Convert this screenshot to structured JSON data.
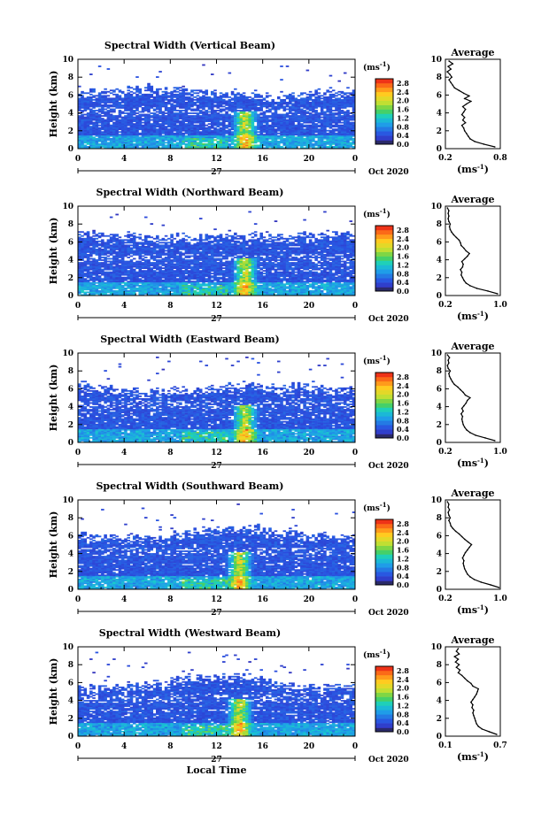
{
  "chart_data": [
    {
      "type": "heatmap",
      "title": "Spectral Width (Vertical Beam)",
      "ylabel": "Height (km)",
      "x_ticks": [
        "0",
        "4",
        "8",
        "12",
        "16",
        "20",
        "0"
      ],
      "xlim": [
        0,
        24
      ],
      "y_ticks": [
        "0",
        "2",
        "4",
        "6",
        "8",
        "10"
      ],
      "ylim": [
        0,
        10
      ],
      "day_label": "27",
      "month_label": "Oct 2020",
      "colorbar": {
        "unit": "(ms",
        "exp": "-1",
        "unit_close": ")",
        "ticks": [
          "0.0",
          "0.4",
          "0.8",
          "1.2",
          "1.6",
          "2.0",
          "2.4",
          "2.8"
        ],
        "range": [
          0,
          3.0
        ]
      },
      "profile": {
        "title": "Average",
        "xlabel": "(ms",
        "xexp": "-1",
        "xclose": ")",
        "x_ticks": [
          "0.2",
          "0.8"
        ],
        "xlim": [
          0.2,
          0.8
        ],
        "heights": [
          0.2,
          0.5,
          0.8,
          1.1,
          1.4,
          1.7,
          2.0,
          2.3,
          2.6,
          2.9,
          3.2,
          3.5,
          3.8,
          4.1,
          4.4,
          4.7,
          5.0,
          5.3,
          5.6,
          5.9,
          6.2,
          6.5,
          6.8,
          7.1,
          7.4,
          7.7,
          8.0,
          8.3,
          8.6,
          8.9,
          9.2,
          9.5,
          9.8
        ],
        "values": [
          0.74,
          0.62,
          0.52,
          0.47,
          0.45,
          0.43,
          0.41,
          0.4,
          0.38,
          0.42,
          0.39,
          0.41,
          0.38,
          0.4,
          0.42,
          0.39,
          0.43,
          0.48,
          0.41,
          0.46,
          0.4,
          0.35,
          0.3,
          0.28,
          0.26,
          0.24,
          0.27,
          0.25,
          0.22,
          0.26,
          0.23,
          0.28,
          0.24
        ]
      },
      "field": {
        "cap": 6.3,
        "peak_times": [
          14.5
        ],
        "base": 0.35
      }
    },
    {
      "type": "heatmap",
      "title": "Spectral Width (Northward Beam)",
      "ylabel": "Height (km)",
      "x_ticks": [
        "0",
        "4",
        "8",
        "12",
        "16",
        "20",
        "0"
      ],
      "xlim": [
        0,
        24
      ],
      "y_ticks": [
        "0",
        "2",
        "4",
        "6",
        "8",
        "10"
      ],
      "ylim": [
        0,
        10
      ],
      "day_label": "27",
      "month_label": "Oct 2020",
      "colorbar": {
        "unit": "(ms",
        "exp": "-1",
        "unit_close": ")",
        "ticks": [
          "0.0",
          "0.4",
          "0.8",
          "1.2",
          "1.6",
          "2.0",
          "2.4",
          "2.8"
        ],
        "range": [
          0,
          3.0
        ]
      },
      "profile": {
        "title": "Average",
        "xlabel": "(ms",
        "xexp": "-1",
        "xclose": ")",
        "x_ticks": [
          "0.2",
          "1.0"
        ],
        "xlim": [
          0.2,
          1.0
        ],
        "heights": [
          0.2,
          0.5,
          0.8,
          1.1,
          1.4,
          1.7,
          2.0,
          2.3,
          2.6,
          2.9,
          3.2,
          3.5,
          3.8,
          4.1,
          4.4,
          4.7,
          5.0,
          5.3,
          5.6,
          5.9,
          6.2,
          6.5,
          6.8,
          7.1,
          7.4,
          7.7,
          8.0,
          8.3,
          8.6,
          8.9,
          9.2,
          9.5,
          9.8
        ],
        "values": [
          0.96,
          0.82,
          0.66,
          0.56,
          0.5,
          0.47,
          0.45,
          0.43,
          0.44,
          0.42,
          0.45,
          0.46,
          0.44,
          0.48,
          0.52,
          0.55,
          0.5,
          0.47,
          0.43,
          0.42,
          0.4,
          0.36,
          0.32,
          0.29,
          0.27,
          0.26,
          0.27,
          0.25,
          0.24,
          0.25,
          0.24,
          0.25,
          0.23
        ]
      },
      "field": {
        "cap": 6.6,
        "peak_times": [
          14.5
        ],
        "base": 0.35
      }
    },
    {
      "type": "heatmap",
      "title": "Spectral Width (Eastward Beam)",
      "ylabel": "Height (km)",
      "x_ticks": [
        "0",
        "4",
        "8",
        "12",
        "16",
        "20",
        "0"
      ],
      "xlim": [
        0,
        24
      ],
      "y_ticks": [
        "0",
        "2",
        "4",
        "6",
        "8",
        "10"
      ],
      "ylim": [
        0,
        10
      ],
      "day_label": "27",
      "month_label": "Oct 2020",
      "colorbar": {
        "unit": "(ms",
        "exp": "-1",
        "unit_close": ")",
        "ticks": [
          "0.0",
          "0.4",
          "0.8",
          "1.2",
          "1.6",
          "2.0",
          "2.4",
          "2.8"
        ],
        "range": [
          0,
          3.0
        ]
      },
      "profile": {
        "title": "Average",
        "xlabel": "(ms",
        "xexp": "-1",
        "xclose": ")",
        "x_ticks": [
          "0.2",
          "1.0"
        ],
        "xlim": [
          0.2,
          1.0
        ],
        "heights": [
          0.2,
          0.5,
          0.8,
          1.1,
          1.4,
          1.7,
          2.0,
          2.3,
          2.6,
          2.9,
          3.2,
          3.5,
          3.8,
          4.1,
          4.4,
          4.7,
          5.0,
          5.3,
          5.6,
          5.9,
          6.2,
          6.5,
          6.8,
          7.1,
          7.4,
          7.7,
          8.0,
          8.3,
          8.6,
          8.9,
          9.2,
          9.5,
          9.8
        ],
        "values": [
          0.92,
          0.78,
          0.64,
          0.56,
          0.51,
          0.48,
          0.46,
          0.45,
          0.44,
          0.45,
          0.43,
          0.46,
          0.44,
          0.47,
          0.5,
          0.52,
          0.56,
          0.49,
          0.46,
          0.42,
          0.38,
          0.33,
          0.3,
          0.28,
          0.26,
          0.25,
          0.27,
          0.24,
          0.23,
          0.25,
          0.24,
          0.26,
          0.23
        ]
      },
      "field": {
        "cap": 6.0,
        "peak_times": [
          14.5
        ],
        "base": 0.35
      }
    },
    {
      "type": "heatmap",
      "title": "Spectral Width (Southward Beam)",
      "ylabel": "Height (km)",
      "x_ticks": [
        "0",
        "4",
        "8",
        "12",
        "16",
        "20",
        "0"
      ],
      "xlim": [
        0,
        24
      ],
      "y_ticks": [
        "0",
        "2",
        "4",
        "6",
        "8",
        "10"
      ],
      "ylim": [
        0,
        10
      ],
      "day_label": "27",
      "month_label": "Oct 2020",
      "colorbar": {
        "unit": "(ms",
        "exp": "-1",
        "unit_close": ")",
        "ticks": [
          "0.0",
          "0.4",
          "0.8",
          "1.2",
          "1.6",
          "2.0",
          "2.4",
          "2.8"
        ],
        "range": [
          0,
          3.0
        ]
      },
      "profile": {
        "title": "Average",
        "xlabel": "(ms",
        "xexp": "-1",
        "xclose": ")",
        "x_ticks": [
          "0.2",
          "1.0"
        ],
        "xlim": [
          0.2,
          1.0
        ],
        "heights": [
          0.2,
          0.5,
          0.8,
          1.1,
          1.4,
          1.7,
          2.0,
          2.3,
          2.6,
          2.9,
          3.2,
          3.5,
          3.8,
          4.1,
          4.4,
          4.7,
          5.0,
          5.3,
          5.6,
          5.9,
          6.2,
          6.5,
          6.8,
          7.1,
          7.4,
          7.7,
          8.0,
          8.3,
          8.6,
          8.9,
          9.2,
          9.5,
          9.8
        ],
        "values": [
          0.98,
          0.86,
          0.72,
          0.62,
          0.56,
          0.52,
          0.5,
          0.48,
          0.47,
          0.46,
          0.47,
          0.45,
          0.47,
          0.49,
          0.52,
          0.55,
          0.58,
          0.53,
          0.48,
          0.44,
          0.4,
          0.35,
          0.31,
          0.28,
          0.27,
          0.25,
          0.27,
          0.25,
          0.24,
          0.26,
          0.24,
          0.25,
          0.23
        ]
      },
      "field": {
        "cap": 6.2,
        "peak_times": [
          14.0
        ],
        "base": 0.35
      }
    },
    {
      "type": "heatmap",
      "title": "Spectral Width (Westward Beam)",
      "ylabel": "Height (km)",
      "xlabel": "Local Time",
      "x_ticks": [
        "0",
        "4",
        "8",
        "12",
        "16",
        "20",
        "0"
      ],
      "xlim": [
        0,
        24
      ],
      "y_ticks": [
        "0",
        "2",
        "4",
        "6",
        "8",
        "10"
      ],
      "ylim": [
        0,
        10
      ],
      "day_label": "27",
      "month_label": "Oct 2020",
      "colorbar": {
        "unit": "(ms",
        "exp": "-1",
        "unit_close": ")",
        "ticks": [
          "0.0",
          "0.4",
          "0.8",
          "1.2",
          "1.6",
          "2.0",
          "2.4",
          "2.8"
        ],
        "range": [
          0,
          3.0
        ]
      },
      "profile": {
        "title": "Average",
        "xlabel": "(ms",
        "xexp": "-1",
        "xclose": ")",
        "x_ticks": [
          "0.1",
          "0.7"
        ],
        "xlim": [
          0.1,
          0.7
        ],
        "heights": [
          0.2,
          0.5,
          0.8,
          1.1,
          1.4,
          1.7,
          2.0,
          2.3,
          2.6,
          2.9,
          3.2,
          3.5,
          3.8,
          4.1,
          4.4,
          4.7,
          5.0,
          5.3,
          5.6,
          5.9,
          6.2,
          6.5,
          6.8,
          7.1,
          7.4,
          7.7,
          8.0,
          8.3,
          8.6,
          8.9,
          9.2,
          9.5,
          9.8
        ],
        "values": [
          0.66,
          0.58,
          0.5,
          0.46,
          0.44,
          0.43,
          0.42,
          0.41,
          0.4,
          0.41,
          0.39,
          0.4,
          0.38,
          0.4,
          0.42,
          0.44,
          0.45,
          0.46,
          0.4,
          0.38,
          0.34,
          0.31,
          0.28,
          0.24,
          0.26,
          0.22,
          0.25,
          0.21,
          0.24,
          0.2,
          0.25,
          0.22,
          0.24
        ]
      },
      "field": {
        "cap": 6.0,
        "peak_times": [
          14.0
        ],
        "base": 0.35
      }
    }
  ]
}
